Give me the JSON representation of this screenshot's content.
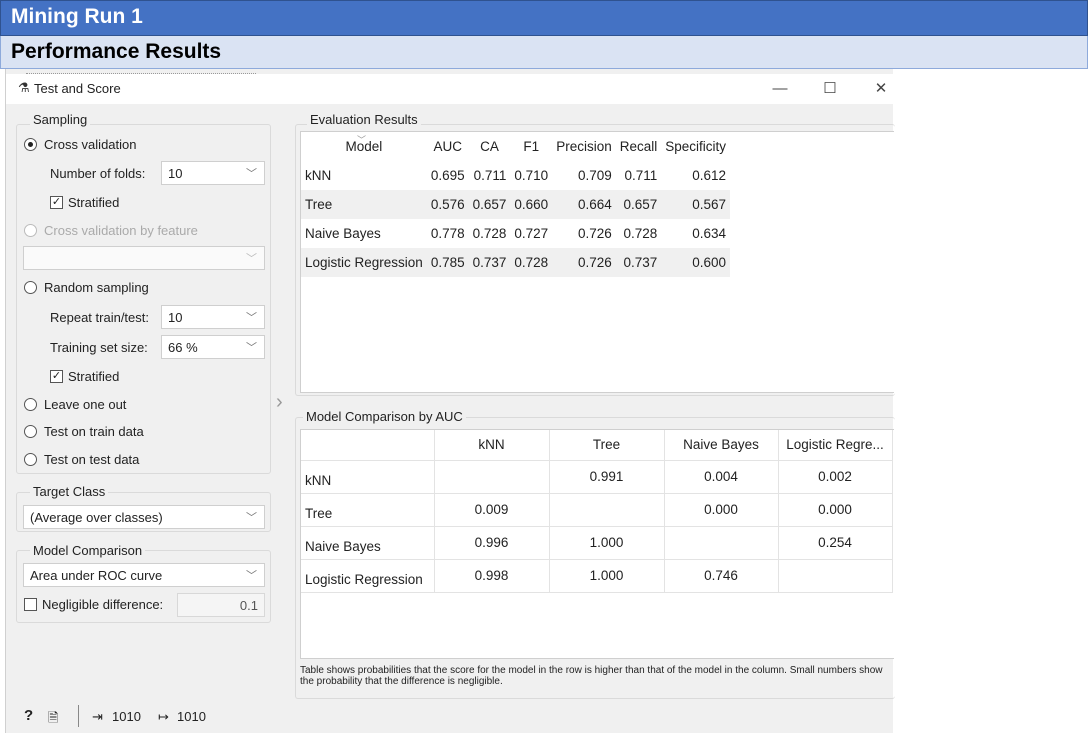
{
  "slide": {
    "title": "Mining Run 1",
    "subtitle": "Performance Results"
  },
  "window": {
    "title": "Test and Score",
    "minimize_glyph": "—",
    "maximize_glyph": "☐",
    "close_glyph": "✕"
  },
  "sampling": {
    "label": "Sampling",
    "cross_validation": "Cross validation",
    "folds_label": "Number of folds:",
    "folds_value": "10",
    "stratified_label": "Stratified",
    "cv_by_feature": "Cross validation by feature",
    "random_sampling": "Random sampling",
    "repeat_label": "Repeat train/test:",
    "repeat_value": "10",
    "train_size_label": "Training set size:",
    "train_size_value": "66 %",
    "stratified2_label": "Stratified",
    "leave_one_out": "Leave one out",
    "test_on_train": "Test on train data",
    "test_on_test": "Test on test data",
    "selected": "cross_validation"
  },
  "target_class": {
    "label": "Target Class",
    "value": "(Average over classes)"
  },
  "model_comparison": {
    "label": "Model Comparison",
    "value": "Area under ROC curve",
    "negligible_label": "Negligible difference:",
    "negligible_value": "0.1"
  },
  "evaluation": {
    "label": "Evaluation Results",
    "columns": [
      "Model",
      "AUC",
      "CA",
      "F1",
      "Precision",
      "Recall",
      "Specificity"
    ],
    "rows": [
      [
        "kNN",
        "0.695",
        "0.711",
        "0.710",
        "0.709",
        "0.711",
        "0.612"
      ],
      [
        "Tree",
        "0.576",
        "0.657",
        "0.660",
        "0.664",
        "0.657",
        "0.567"
      ],
      [
        "Naive Bayes",
        "0.778",
        "0.728",
        "0.727",
        "0.726",
        "0.728",
        "0.634"
      ],
      [
        "Logistic Regression",
        "0.785",
        "0.737",
        "0.728",
        "0.726",
        "0.737",
        "0.600"
      ]
    ]
  },
  "comparison": {
    "label": "Model Comparison by AUC",
    "columns": [
      "kNN",
      "Tree",
      "Naive Bayes",
      "Logistic Regre..."
    ],
    "rows": [
      {
        "name": "kNN",
        "values": [
          "",
          "0.991",
          "0.004",
          "0.002"
        ]
      },
      {
        "name": "Tree",
        "values": [
          "0.009",
          "",
          "0.000",
          "0.000"
        ]
      },
      {
        "name": "Naive Bayes",
        "values": [
          "0.996",
          "1.000",
          "",
          "0.254"
        ]
      },
      {
        "name": "Logistic Regression",
        "values": [
          "0.998",
          "1.000",
          "0.746",
          ""
        ]
      }
    ],
    "note": "Table shows probabilities that the score for the model in the row is higher than that of the model in the column. Small numbers show the probability that the difference is negligible."
  },
  "status": {
    "input_count": "1010",
    "output_count": "1010"
  },
  "icons": {
    "window": "flask-icon",
    "help": "help-icon",
    "report": "report-icon",
    "input": "input-icon",
    "output": "output-icon",
    "collapse": "chevron-right-icon"
  }
}
